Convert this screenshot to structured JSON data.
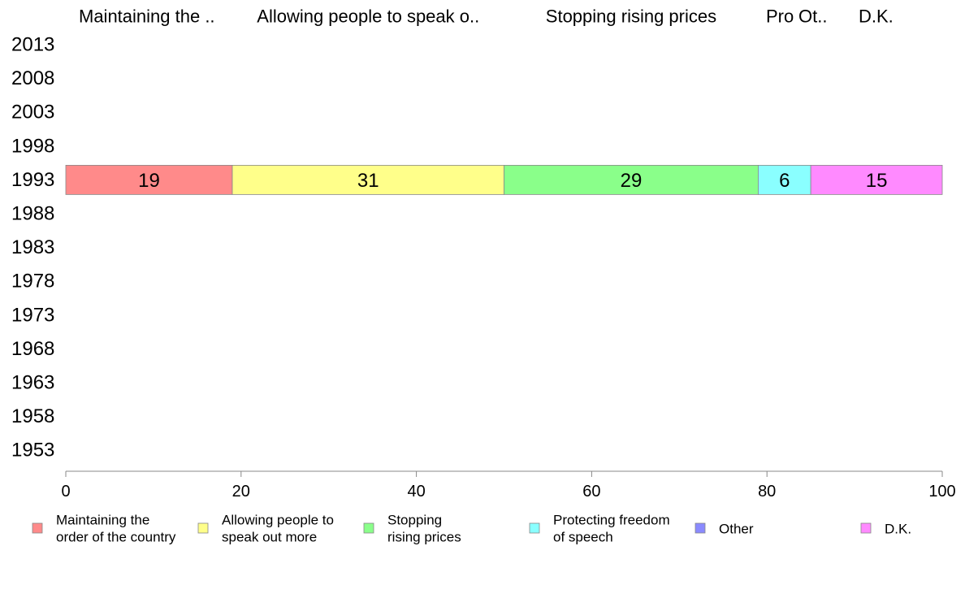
{
  "chart_data": {
    "type": "bar",
    "orientation": "horizontal",
    "stacked": true,
    "categories": [
      "2013",
      "2008",
      "2003",
      "1998",
      "1993",
      "1988",
      "1983",
      "1978",
      "1973",
      "1968",
      "1963",
      "1958",
      "1953"
    ],
    "series": [
      {
        "name": "Maintaining the order of the country",
        "legend_label": [
          "Maintaining the",
          "order of the country"
        ],
        "header_label": "Maintaining the ..",
        "color": "#ff8a8a",
        "values": [
          null,
          null,
          null,
          null,
          19,
          null,
          null,
          null,
          null,
          null,
          null,
          null,
          null
        ]
      },
      {
        "name": "Allowing people to speak out more",
        "legend_label": [
          "Allowing people to",
          "speak out more"
        ],
        "header_label": "Allowing people to speak o..",
        "color": "#ffff8a",
        "values": [
          null,
          null,
          null,
          null,
          31,
          null,
          null,
          null,
          null,
          null,
          null,
          null,
          null
        ]
      },
      {
        "name": "Stopping rising prices",
        "legend_label": [
          "Stopping",
          "rising prices"
        ],
        "header_label": "Stopping rising prices",
        "color": "#8aff8a",
        "values": [
          null,
          null,
          null,
          null,
          29,
          null,
          null,
          null,
          null,
          null,
          null,
          null,
          null
        ]
      },
      {
        "name": "Protecting freedom of speech",
        "legend_label": [
          "Protecting freedom",
          "of speech"
        ],
        "header_label": "Pro",
        "color": "#8affff",
        "values": [
          null,
          null,
          null,
          null,
          6,
          null,
          null,
          null,
          null,
          null,
          null,
          null,
          null
        ]
      },
      {
        "name": "Other",
        "legend_label": [
          "Other"
        ],
        "header_label": "Ot..",
        "color": "#8a8aff",
        "values": [
          null,
          null,
          null,
          null,
          0,
          null,
          null,
          null,
          null,
          null,
          null,
          null,
          null
        ]
      },
      {
        "name": "D.K.",
        "legend_label": [
          "D.K."
        ],
        "header_label": "D.K.",
        "color": "#ff8aff",
        "values": [
          null,
          null,
          null,
          null,
          15,
          null,
          null,
          null,
          null,
          null,
          null,
          null,
          null
        ]
      }
    ],
    "xlim": [
      0,
      100
    ],
    "xticks": [
      0,
      20,
      40,
      60,
      80,
      100
    ],
    "title": "",
    "xlabel": "",
    "ylabel": "",
    "grid": false,
    "legend_position": "bottom"
  }
}
